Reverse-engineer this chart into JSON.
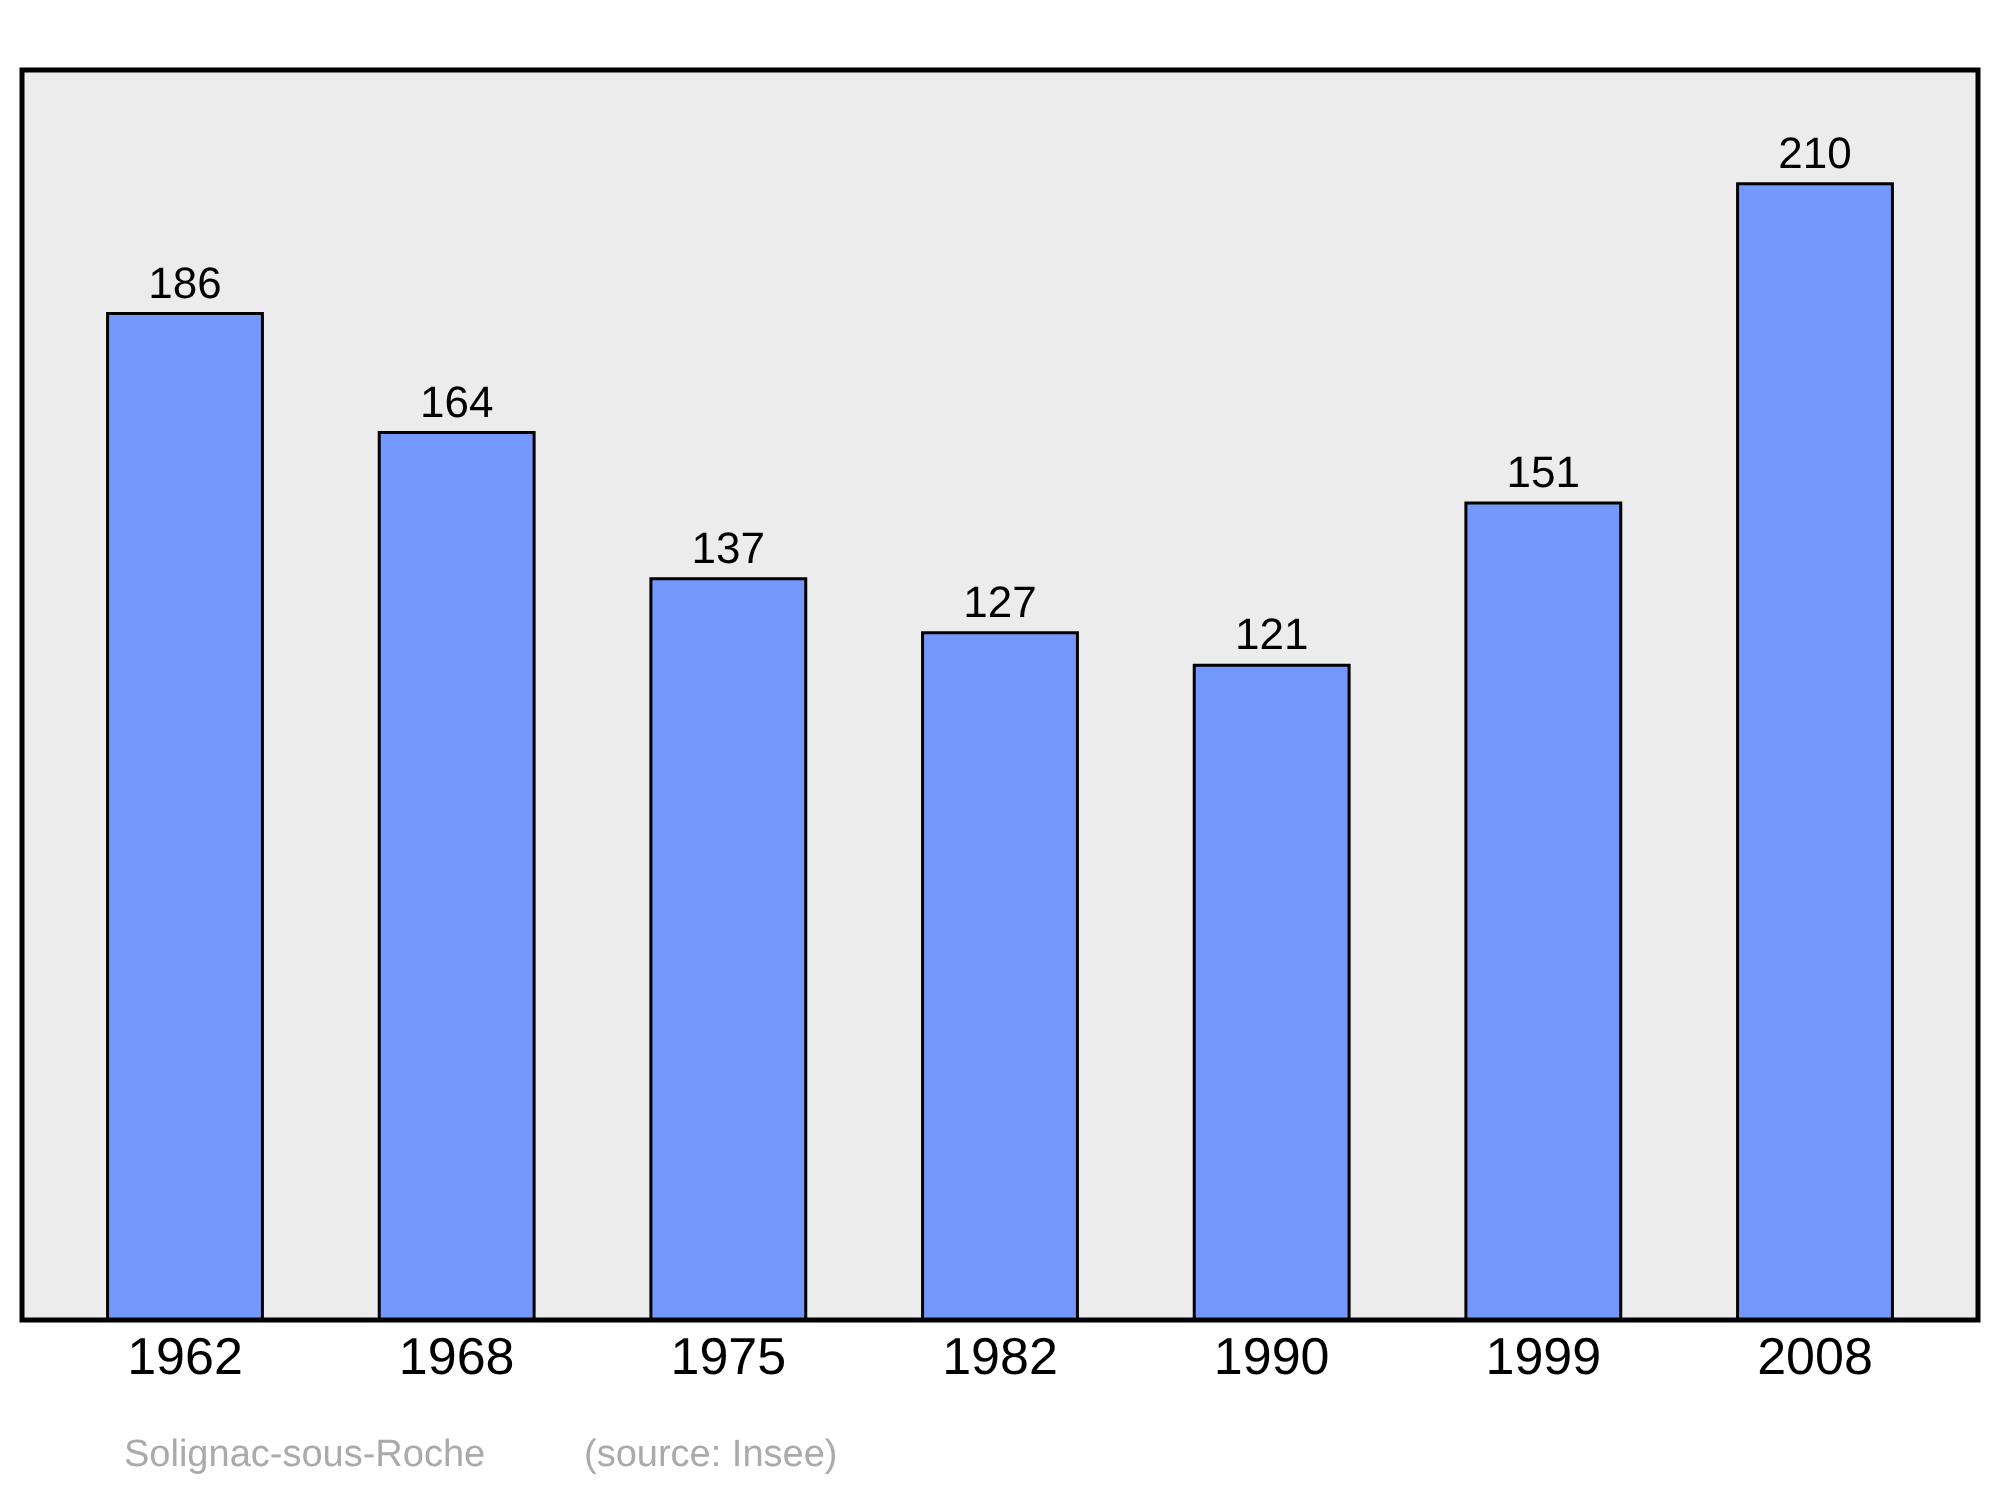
{
  "chart_data": {
    "type": "bar",
    "categories": [
      "1962",
      "1968",
      "1975",
      "1982",
      "1990",
      "1999",
      "2008"
    ],
    "values": [
      186,
      164,
      137,
      127,
      121,
      151,
      210
    ],
    "color": "#7399ff",
    "data_labels": true,
    "grid": false,
    "legend": false,
    "annotations": [
      "Solignac-sous-Roche",
      "(source: Insee)"
    ]
  }
}
